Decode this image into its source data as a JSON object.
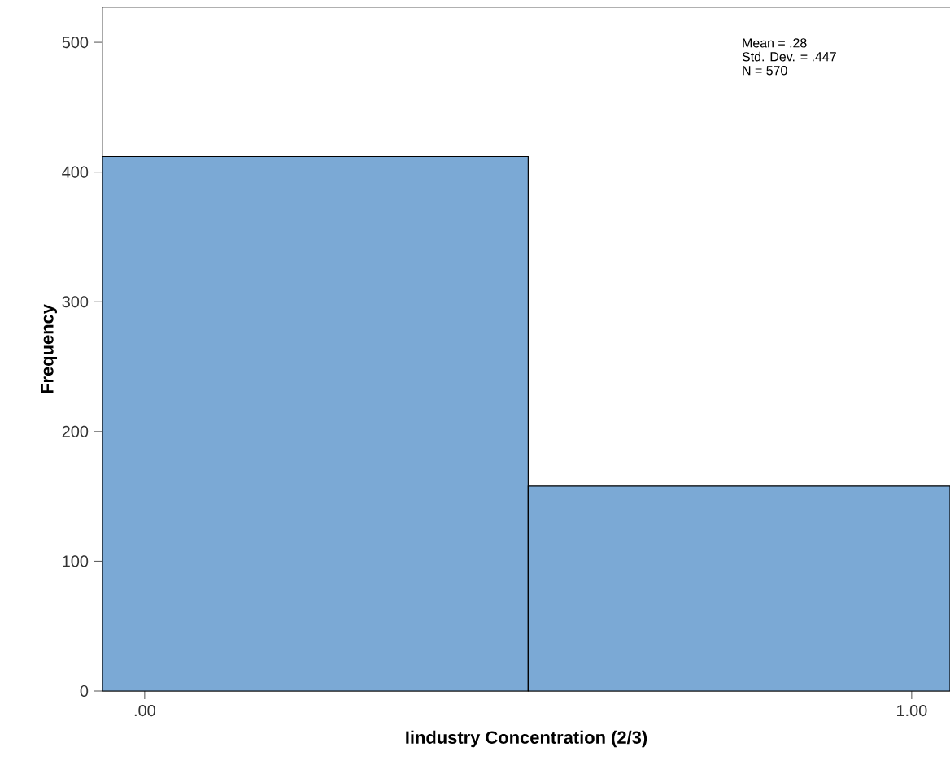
{
  "chart_data": {
    "type": "histogram",
    "xlabel": "Iindustry Concentration (2/3)",
    "ylabel": "Frequency",
    "bins": [
      -0.055,
      0.5,
      1.05
    ],
    "values": [
      412,
      158
    ],
    "color": "#7ba9d5",
    "xlim": [
      -0.055,
      1.05
    ],
    "ylim": [
      0,
      527
    ],
    "xticks": [
      {
        "value": 0,
        "label": ".00"
      },
      {
        "value": 1,
        "label": "1.00"
      }
    ],
    "yticks": [
      0,
      100,
      200,
      300,
      400,
      500
    ],
    "annotations": [
      "Mean = .28",
      "Std. Dev. = .447",
      "N = 570"
    ],
    "grid": false
  }
}
